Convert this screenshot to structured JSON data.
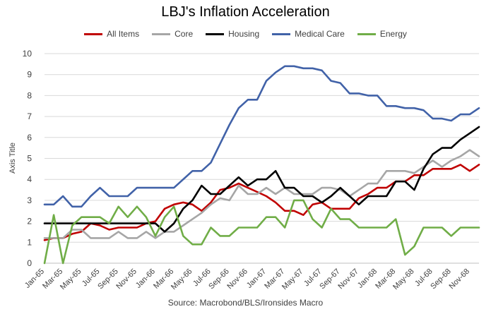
{
  "chart_data": {
    "type": "line",
    "title": "LBJ's Inflation Acceleration",
    "ylabel": "Axis Title",
    "xlabel": "",
    "source": "Source: Macrobond/BLS/Ironsides Macro",
    "ylim": [
      0,
      10
    ],
    "yticks": [
      0,
      1,
      2,
      3,
      4,
      5,
      6,
      7,
      8,
      9,
      10
    ],
    "grid": "horizontal",
    "legend": "top",
    "x": [
      "Jan-65",
      "Feb-65",
      "Mar-65",
      "Apr-65",
      "May-65",
      "Jun-65",
      "Jul-65",
      "Aug-65",
      "Sep-65",
      "Oct-65",
      "Nov-65",
      "Dec-65",
      "Jan-66",
      "Feb-66",
      "Mar-66",
      "Apr-66",
      "May-66",
      "Jun-66",
      "Jul-66",
      "Aug-66",
      "Sep-66",
      "Oct-66",
      "Nov-66",
      "Dec-66",
      "Jan-67",
      "Feb-67",
      "Mar-67",
      "Apr-67",
      "May-67",
      "Jun-67",
      "Jul-67",
      "Aug-67",
      "Sep-67",
      "Oct-67",
      "Nov-67",
      "Dec-67",
      "Jan-68",
      "Feb-68",
      "Mar-68",
      "Apr-68",
      "May-68",
      "Jun-68",
      "Jul-68",
      "Aug-68",
      "Sep-68",
      "Oct-68",
      "Nov-68",
      "Dec-68"
    ],
    "xtick_labels": [
      "Jan-65",
      "Mar-65",
      "May-65",
      "Jul-65",
      "Sep-65",
      "Nov-65",
      "Jan-66",
      "Mar-66",
      "May-66",
      "Jul-66",
      "Sep-66",
      "Nov-66",
      "Jan-67",
      "Mar-67",
      "May-67",
      "Jul-67",
      "Sep-67",
      "Nov-67",
      "Jan-68",
      "Mar-68",
      "May-68",
      "Jul-68",
      "Sep-68",
      "Nov-68"
    ],
    "series": [
      {
        "name": "All Items",
        "color": "#c00000",
        "values": [
          1.1,
          1.2,
          1.2,
          1.4,
          1.5,
          1.9,
          1.8,
          1.6,
          1.7,
          1.7,
          1.7,
          1.9,
          2.0,
          2.6,
          2.8,
          2.9,
          2.8,
          2.5,
          2.9,
          3.5,
          3.6,
          3.8,
          3.6,
          3.4,
          3.2,
          2.9,
          2.5,
          2.5,
          2.3,
          2.8,
          2.9,
          2.6,
          2.6,
          2.6,
          3.1,
          3.3,
          3.6,
          3.6,
          3.9,
          3.9,
          4.2,
          4.2,
          4.5,
          4.5,
          4.5,
          4.7,
          4.4,
          4.7
        ]
      },
      {
        "name": "Core",
        "color": "#a6a6a6",
        "values": [
          1.2,
          1.2,
          1.2,
          1.6,
          1.6,
          1.2,
          1.2,
          1.2,
          1.5,
          1.2,
          1.2,
          1.5,
          1.2,
          1.5,
          1.5,
          1.8,
          2.1,
          2.4,
          2.8,
          3.1,
          3.0,
          3.7,
          3.3,
          3.3,
          3.6,
          3.3,
          3.6,
          3.3,
          3.3,
          3.3,
          3.6,
          3.6,
          3.5,
          3.2,
          3.5,
          3.8,
          3.8,
          4.4,
          4.4,
          4.4,
          4.3,
          4.6,
          4.9,
          4.6,
          4.9,
          5.1,
          5.4,
          5.1
        ]
      },
      {
        "name": "Housing",
        "color": "#000000",
        "values": [
          1.9,
          1.9,
          1.9,
          1.9,
          1.9,
          1.9,
          1.9,
          1.9,
          1.9,
          1.9,
          1.9,
          1.9,
          1.9,
          1.5,
          1.9,
          2.6,
          3.0,
          3.7,
          3.3,
          3.3,
          3.7,
          4.1,
          3.7,
          4.0,
          4.0,
          4.4,
          3.6,
          3.6,
          3.2,
          3.2,
          2.9,
          3.2,
          3.6,
          3.2,
          2.8,
          3.2,
          3.2,
          3.2,
          3.9,
          3.9,
          3.5,
          4.5,
          5.2,
          5.5,
          5.5,
          5.9,
          6.2,
          6.5
        ]
      },
      {
        "name": "Medical Care",
        "color": "#4162a8",
        "values": [
          2.8,
          2.8,
          3.2,
          2.7,
          2.7,
          3.2,
          3.6,
          3.2,
          3.2,
          3.2,
          3.6,
          3.6,
          3.6,
          3.6,
          3.6,
          4.0,
          4.4,
          4.4,
          4.8,
          5.7,
          6.6,
          7.4,
          7.8,
          7.8,
          8.7,
          9.1,
          9.4,
          9.4,
          9.3,
          9.3,
          9.2,
          8.7,
          8.6,
          8.1,
          8.1,
          8.0,
          8.0,
          7.5,
          7.5,
          7.4,
          7.4,
          7.3,
          6.9,
          6.9,
          6.8,
          7.1,
          7.1,
          7.4
        ]
      },
      {
        "name": "Energy",
        "color": "#70ad47",
        "values": [
          0.0,
          2.3,
          0.0,
          1.8,
          2.2,
          2.2,
          2.2,
          1.9,
          2.7,
          2.2,
          2.7,
          2.2,
          1.3,
          2.2,
          2.7,
          1.3,
          0.9,
          0.9,
          1.7,
          1.3,
          1.3,
          1.7,
          1.7,
          1.7,
          2.2,
          2.2,
          1.7,
          3.0,
          3.0,
          2.1,
          1.7,
          2.6,
          2.1,
          2.1,
          1.7,
          1.7,
          1.7,
          1.7,
          2.1,
          0.4,
          0.8,
          1.7,
          1.7,
          1.7,
          1.3,
          1.7,
          1.7,
          1.7
        ]
      }
    ]
  }
}
